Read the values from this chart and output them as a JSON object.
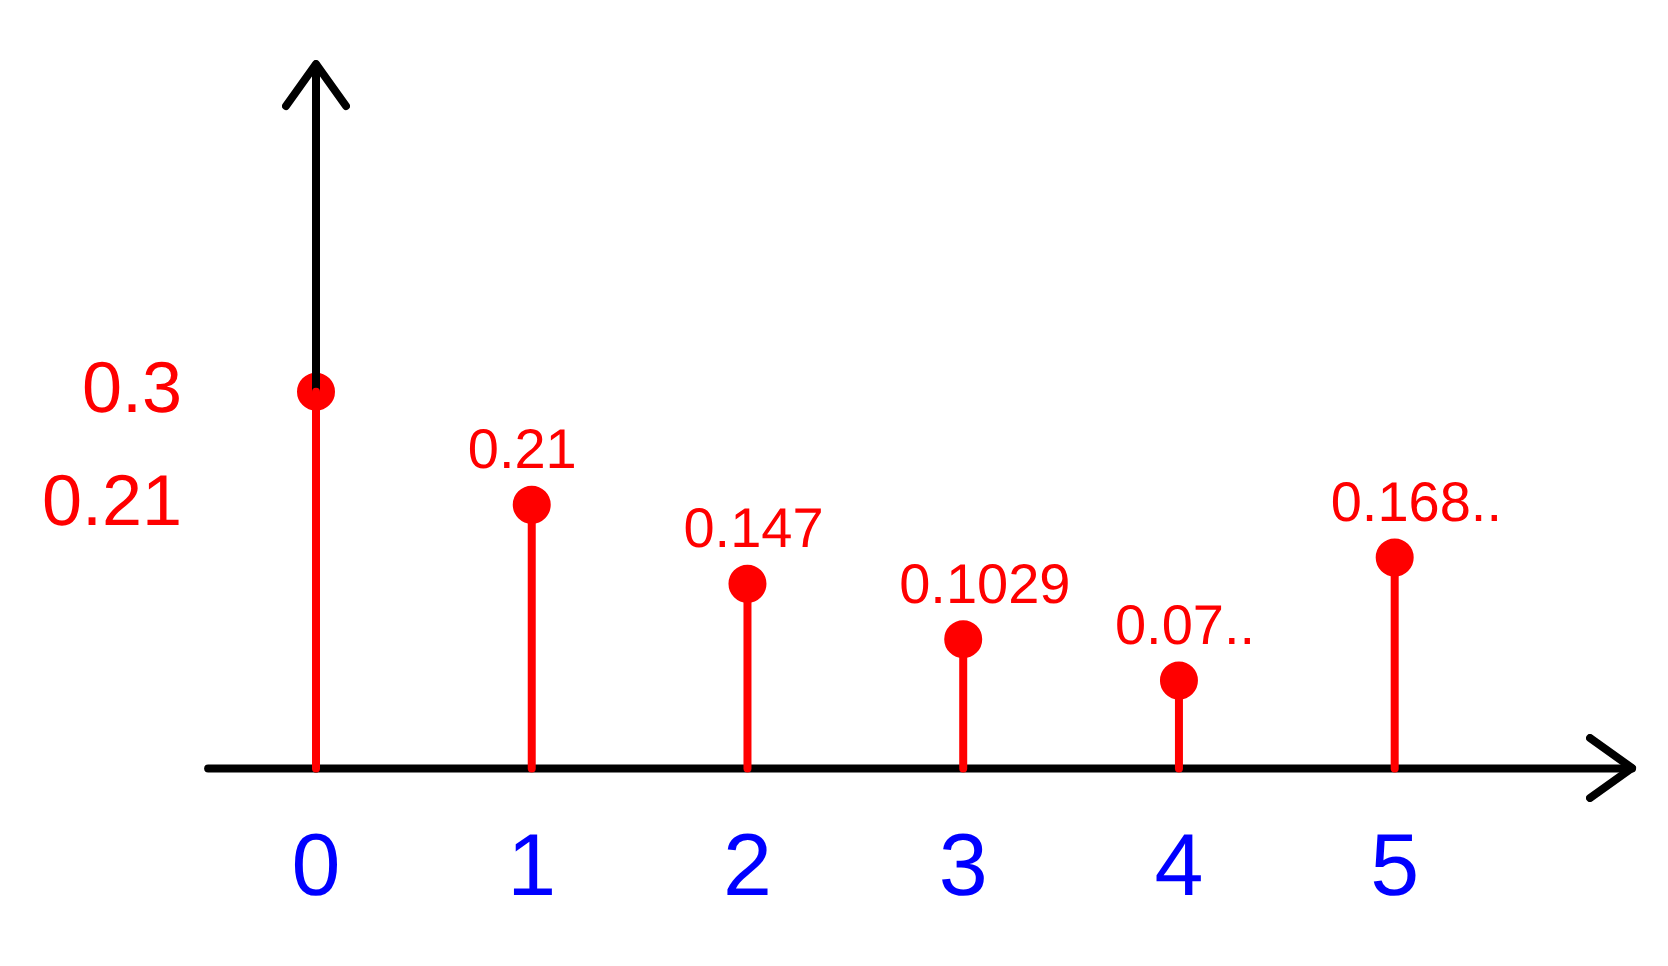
{
  "chart_data": {
    "type": "lollipop",
    "x": [
      0,
      1,
      2,
      3,
      4,
      5
    ],
    "values": [
      0.3,
      0.21,
      0.147,
      0.1029,
      0.07,
      0.168
    ],
    "value_labels": [
      null,
      "0.21",
      "0.147",
      "0.1029",
      "0.07..",
      "0.168.."
    ],
    "color": "#ff0000",
    "marker": "circle",
    "grid": false,
    "legend": false,
    "xlim": [
      -0.5,
      6.1
    ],
    "ylim": [
      0,
      0.56
    ],
    "xticks": [
      0,
      1,
      2,
      3,
      4,
      5
    ],
    "yticks": [
      0.21,
      0.3
    ]
  }
}
